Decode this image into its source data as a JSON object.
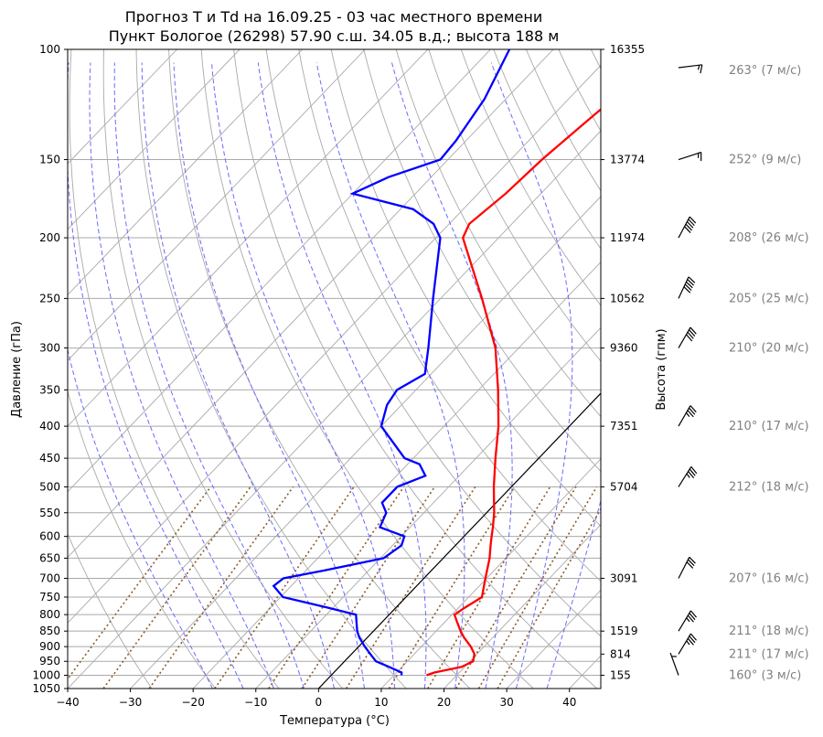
{
  "chart_data": {
    "type": "line",
    "subtype": "skew-t log-p diagram",
    "title_line1": "Прогноз T и Td на 16.09.25 - 03 час местного времени",
    "title_line2": "Пункт Бологое (26298) 57.90 с.ш. 34.05 в.д.; высота 188 м",
    "xlabel": "Температура (°C)",
    "ylabel": "Давление (гПа)",
    "ylabel_right": "Высота (гпм)",
    "xlim": [
      -40,
      45
    ],
    "ylim": [
      1050,
      100
    ],
    "y_scale": "log",
    "grid": true,
    "x_ticks": [
      -40,
      -30,
      -20,
      -10,
      0,
      10,
      20,
      30,
      40
    ],
    "y_ticks": [
      100,
      150,
      200,
      250,
      300,
      350,
      400,
      450,
      500,
      550,
      600,
      650,
      700,
      750,
      800,
      850,
      900,
      950,
      1000,
      1050
    ],
    "height_labels": [
      {
        "p": 100,
        "h": "16355"
      },
      {
        "p": 150,
        "h": "13774"
      },
      {
        "p": 200,
        "h": "11974"
      },
      {
        "p": 250,
        "h": "10562"
      },
      {
        "p": 300,
        "h": "9360"
      },
      {
        "p": 400,
        "h": "7351"
      },
      {
        "p": 500,
        "h": "5704"
      },
      {
        "p": 700,
        "h": "3091"
      },
      {
        "p": 850,
        "h": "1519"
      },
      {
        "p": 925,
        "h": "814"
      },
      {
        "p": 1000,
        "h": "155"
      }
    ],
    "series": [
      {
        "color": "#ff0000",
        "p": [
          1000,
          990,
          970,
          950,
          925,
          900,
          870,
          850,
          820,
          800,
          780,
          750,
          700,
          650,
          620,
          600,
          580,
          550,
          500,
          450,
          400,
          350,
          300,
          250,
          200,
          190,
          170,
          150,
          130,
          110,
          100
        ],
        "t": [
          15.2,
          16.0,
          19.5,
          20.5,
          19.6,
          17.9,
          15.4,
          13.9,
          11.8,
          10.4,
          11.0,
          12.1,
          9.8,
          7.4,
          5.6,
          4.4,
          3.2,
          1.2,
          -2.8,
          -6.9,
          -11.3,
          -16.9,
          -23.7,
          -33.4,
          -45.7,
          -46.8,
          -45.6,
          -45.0,
          -43.7,
          -42.0,
          -41.5
        ]
      },
      {
        "color": "#0000ff",
        "p": [
          1000,
          990,
          970,
          950,
          925,
          900,
          870,
          850,
          820,
          800,
          780,
          750,
          720,
          700,
          680,
          650,
          620,
          600,
          580,
          550,
          530,
          500,
          480,
          460,
          450,
          400,
          370,
          350,
          330,
          300,
          250,
          200,
          190,
          180,
          170,
          160,
          150,
          140,
          120,
          100
        ],
        "t": [
          11.2,
          10.8,
          8.0,
          5.0,
          3.0,
          1.0,
          -1.3,
          -2.6,
          -4.2,
          -5.3,
          -10.8,
          -19.6,
          -22.8,
          -22.4,
          -17.0,
          -9.5,
          -8.6,
          -9.5,
          -14.8,
          -16.0,
          -18.2,
          -18.2,
          -15.4,
          -18.1,
          -21.4,
          -30.0,
          -32.3,
          -33.0,
          -31.0,
          -34.4,
          -41.2,
          -49.3,
          -52.5,
          -58.0,
          -70.0,
          -66.8,
          -61.2,
          -61.6,
          -63.4,
          -67.0
        ]
      }
    ],
    "winds": [
      {
        "p": 100,
        "label": "263° (7 м/с)",
        "dir": 263,
        "speed": 7
      },
      {
        "p": 150,
        "label": "252° (9 м/с)",
        "dir": 252,
        "speed": 9
      },
      {
        "p": 200,
        "label": "208° (26 м/с)",
        "dir": 208,
        "speed": 26
      },
      {
        "p": 250,
        "label": "205° (25 м/с)",
        "dir": 205,
        "speed": 25
      },
      {
        "p": 300,
        "label": "210° (20 м/с)",
        "dir": 210,
        "speed": 20
      },
      {
        "p": 400,
        "label": "210° (17 м/с)",
        "dir": 210,
        "speed": 17
      },
      {
        "p": 500,
        "label": "212° (18 м/с)",
        "dir": 212,
        "speed": 18
      },
      {
        "p": 700,
        "label": "207° (16 м/с)",
        "dir": 207,
        "speed": 16
      },
      {
        "p": 850,
        "label": "211° (18 м/с)",
        "dir": 211,
        "speed": 18
      },
      {
        "p": 925,
        "label": "211° (17 м/с)",
        "dir": 211,
        "speed": 17
      },
      {
        "p": 1000,
        "label": "160° (3 м/с)",
        "dir": 160,
        "speed": 3
      }
    ]
  }
}
